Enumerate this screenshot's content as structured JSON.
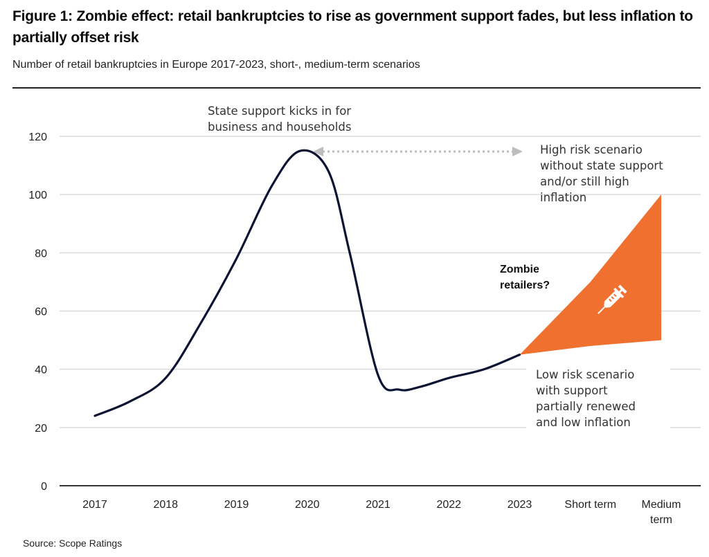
{
  "figure": {
    "title": "Figure 1: Zombie effect: retail bankruptcies to rise as government support fades, but less inflation to partially offset risk",
    "subtitle": "Number of retail bankruptcies in Europe 2017-2023, short-, medium-term scenarios",
    "source": "Source: Scope Ratings"
  },
  "chart_data": {
    "type": "line",
    "title": "Figure 1: Zombie effect: retail bankruptcies to rise as government support fades, but less inflation to partially offset risk",
    "subtitle": "Number of retail bankruptcies in Europe 2017-2023, short-, medium-term scenarios",
    "xlabel": "",
    "ylabel": "",
    "categories": [
      "2017",
      "2018",
      "2019",
      "2020",
      "2021",
      "2022",
      "2023",
      "Short term",
      "Medium term"
    ],
    "category_lines": [
      [
        "2017"
      ],
      [
        "2018"
      ],
      [
        "2019"
      ],
      [
        "2020"
      ],
      [
        "2021"
      ],
      [
        "2022"
      ],
      [
        "2023"
      ],
      [
        "Short term"
      ],
      [
        "Medium",
        "term"
      ]
    ],
    "yticks": [
      0,
      20,
      40,
      60,
      80,
      100,
      120
    ],
    "ylim": [
      0,
      120
    ],
    "grid": true,
    "series": [
      {
        "name": "Retail bankruptcies",
        "color": "#0d1333",
        "x": [
          0,
          0.5,
          1,
          1.5,
          2,
          2.5,
          2.9,
          3.3,
          3.6,
          4,
          4.3,
          4.6,
          5,
          5.5,
          6
        ],
        "values": [
          24,
          29,
          37,
          56,
          78,
          103,
          115,
          108,
          80,
          38,
          33,
          34,
          37,
          40,
          45
        ]
      }
    ],
    "scenario_band": {
      "name": "Zombie retailers? scenario range",
      "color": "#f07030",
      "categories": [
        "2023",
        "Short term",
        "Medium term"
      ],
      "high": [
        45,
        70,
        100
      ],
      "low": [
        45,
        48,
        50
      ]
    },
    "annotations": [
      {
        "id": "state-support",
        "lines": [
          "State support kicks in for",
          "business and households"
        ]
      },
      {
        "id": "high-risk",
        "lines": [
          "High risk scenario",
          "without state support",
          "and/or still high",
          "inflation"
        ]
      },
      {
        "id": "zombie",
        "lines": [
          "Zombie",
          "retailers?"
        ]
      },
      {
        "id": "low-risk",
        "lines": [
          "Low risk scenario",
          "with support",
          "partially renewed",
          "and low inflation"
        ]
      }
    ],
    "state_support_period": {
      "from": "2020",
      "to": "2023",
      "style": "dotted double arrow",
      "color": "#bdbdbd"
    },
    "icon": "syringe-icon"
  }
}
